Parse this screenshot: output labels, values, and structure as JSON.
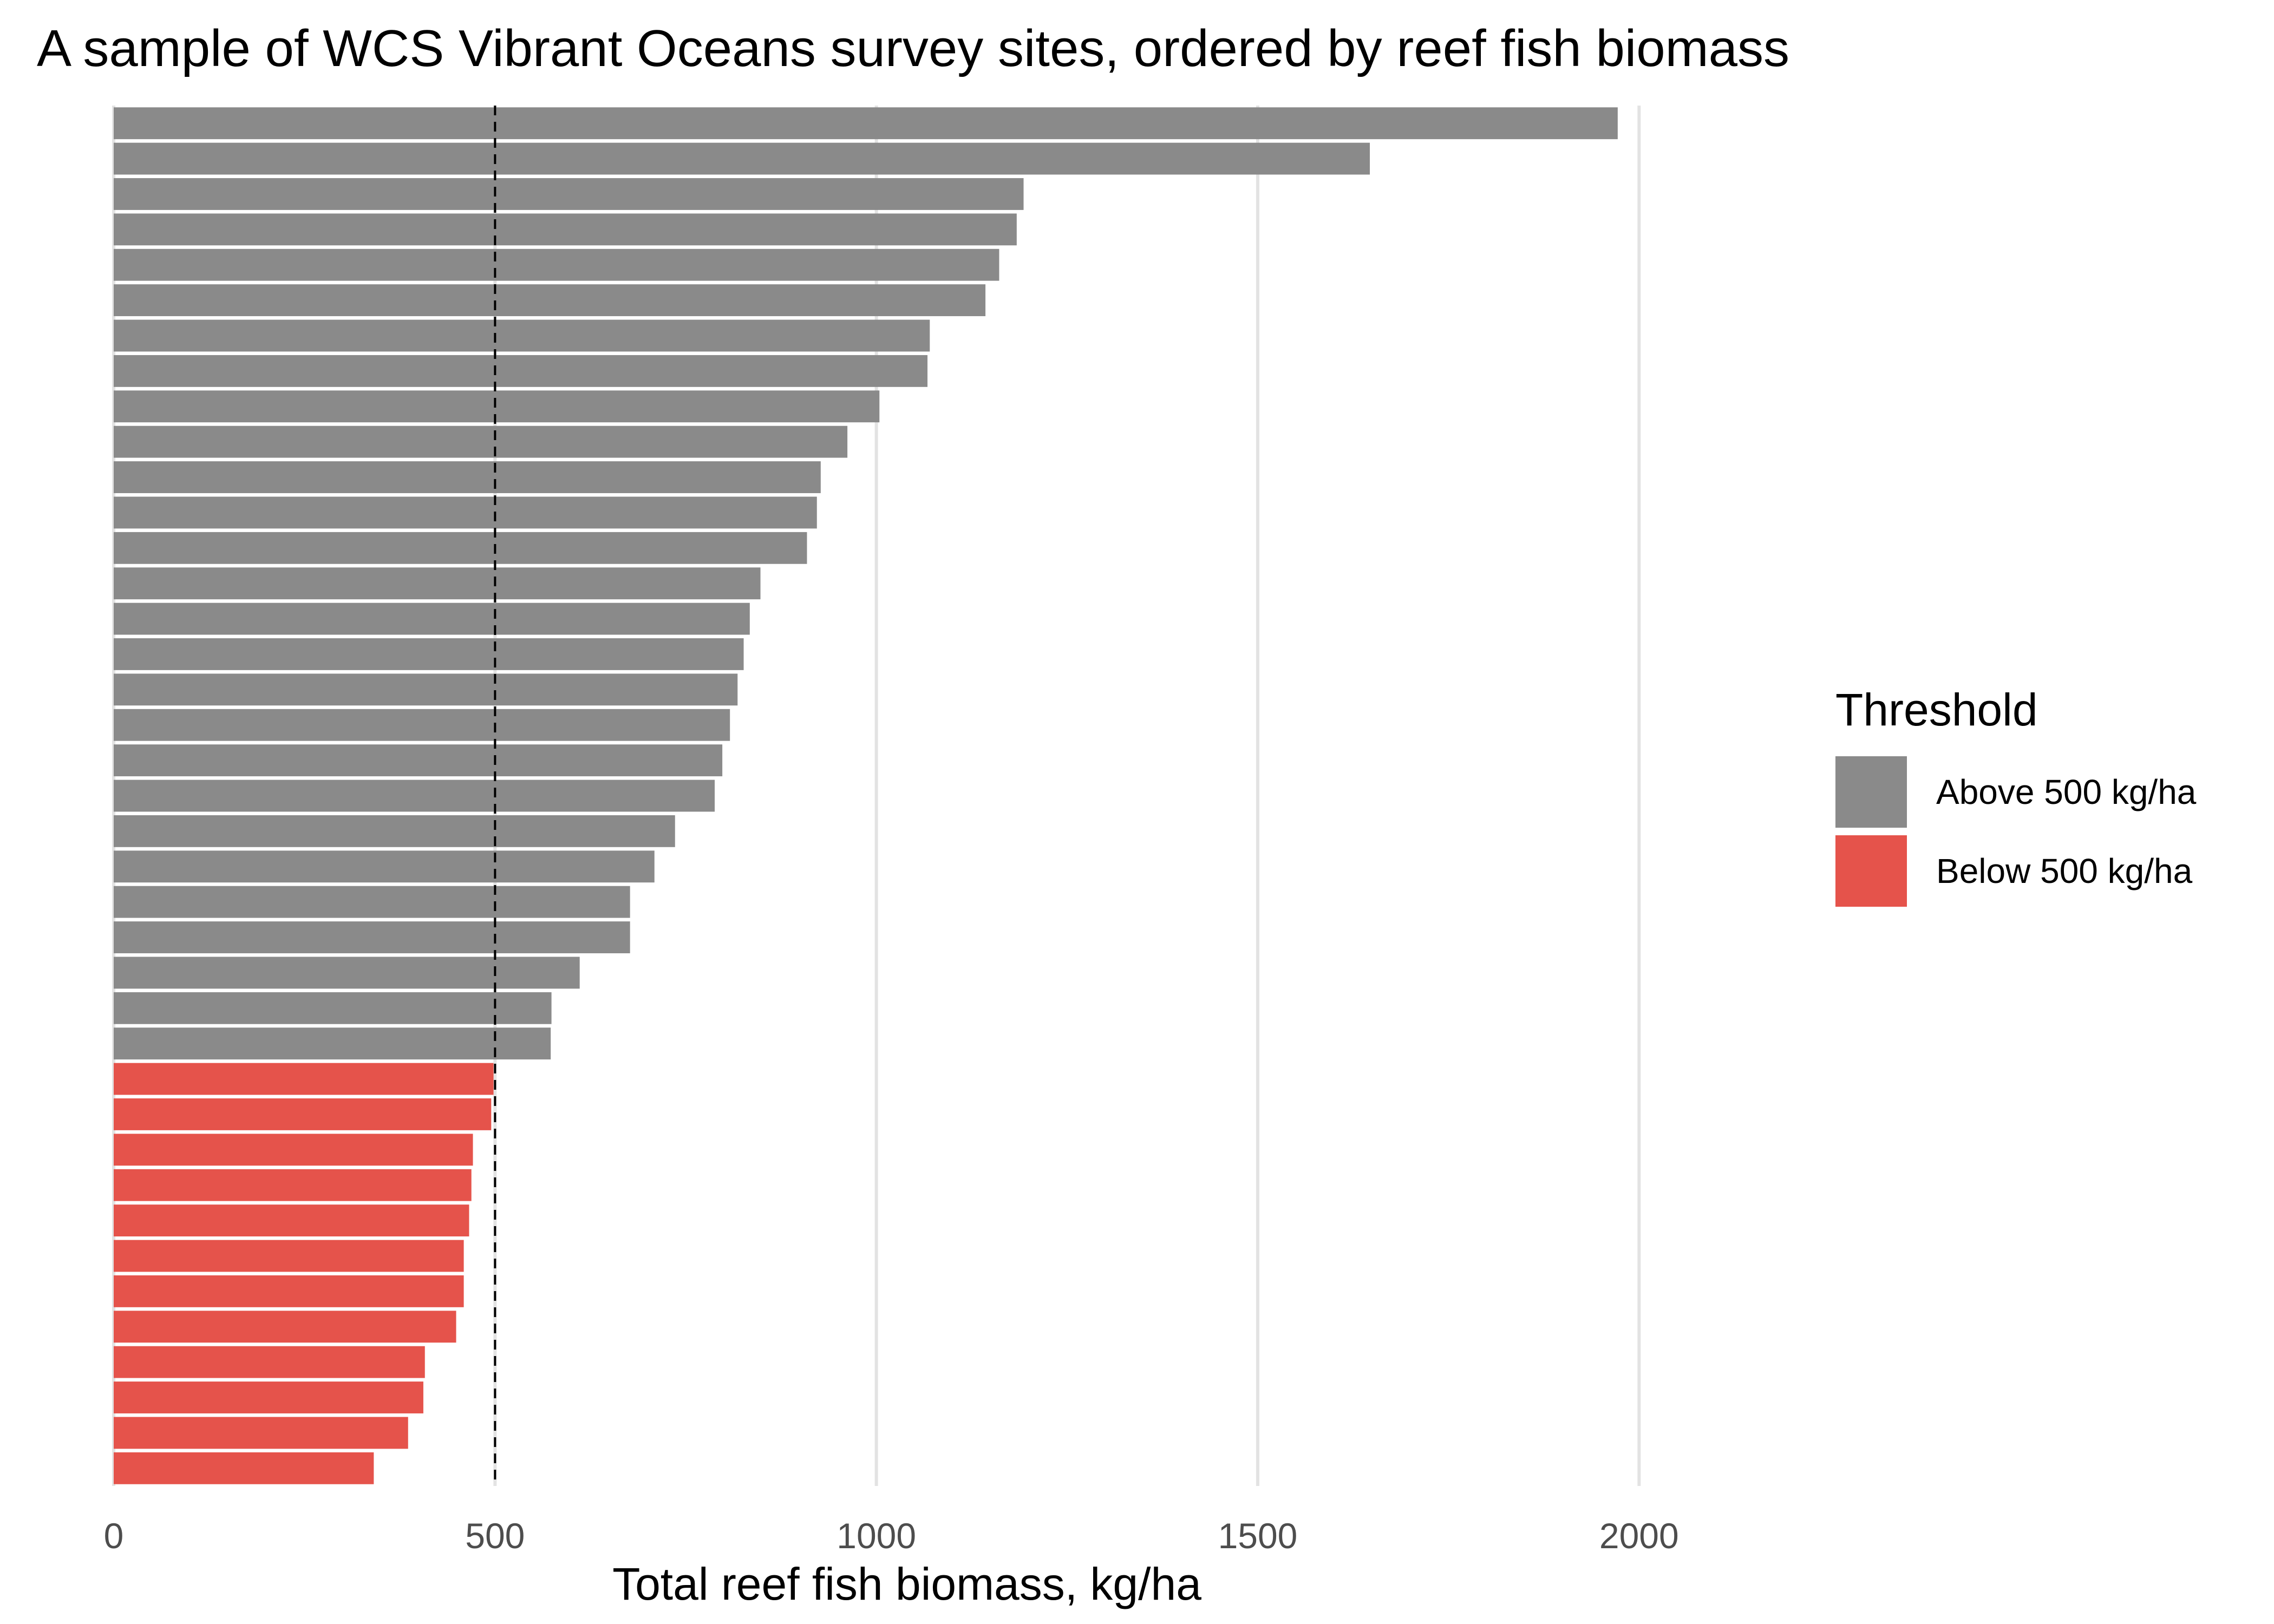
{
  "chart_data": {
    "type": "bar",
    "orientation": "horizontal",
    "title": "A sample of WCS Vibrant Oceans survey sites, ordered by reef fish biomass",
    "xlabel": "Total reef fish biomass, kg/ha",
    "ylabel": "",
    "xlim": [
      0,
      2000
    ],
    "x_ticks": [
      "0",
      "500",
      "1000",
      "1500",
      "2000"
    ],
    "x_tick_values": [
      0,
      500,
      1000,
      1500,
      2000
    ],
    "grid": "vertical major gridlines",
    "reference_line": {
      "x": 500,
      "style": "dashed"
    },
    "legend": {
      "title": "Threshold",
      "placement": "right",
      "items": [
        {
          "label": "Above 500 kg/ha",
          "color": "#8a8a8a"
        },
        {
          "label": "Below 500 kg/ha",
          "color": "#e5534b"
        }
      ]
    },
    "series": [
      {
        "name": "Above 500 kg/ha",
        "color": "#8a8a8a",
        "values": [
          1972,
          1647,
          1193,
          1184,
          1161,
          1143,
          1070,
          1067,
          1004,
          962,
          927,
          922,
          909,
          848,
          834,
          826,
          818,
          808,
          798,
          788,
          736,
          709,
          677,
          677,
          611,
          574,
          573
        ]
      },
      {
        "name": "Below 500 kg/ha",
        "color": "#e5534b",
        "values": [
          498,
          495,
          471,
          469,
          466,
          459,
          459,
          449,
          408,
          406,
          386,
          341
        ]
      }
    ]
  }
}
